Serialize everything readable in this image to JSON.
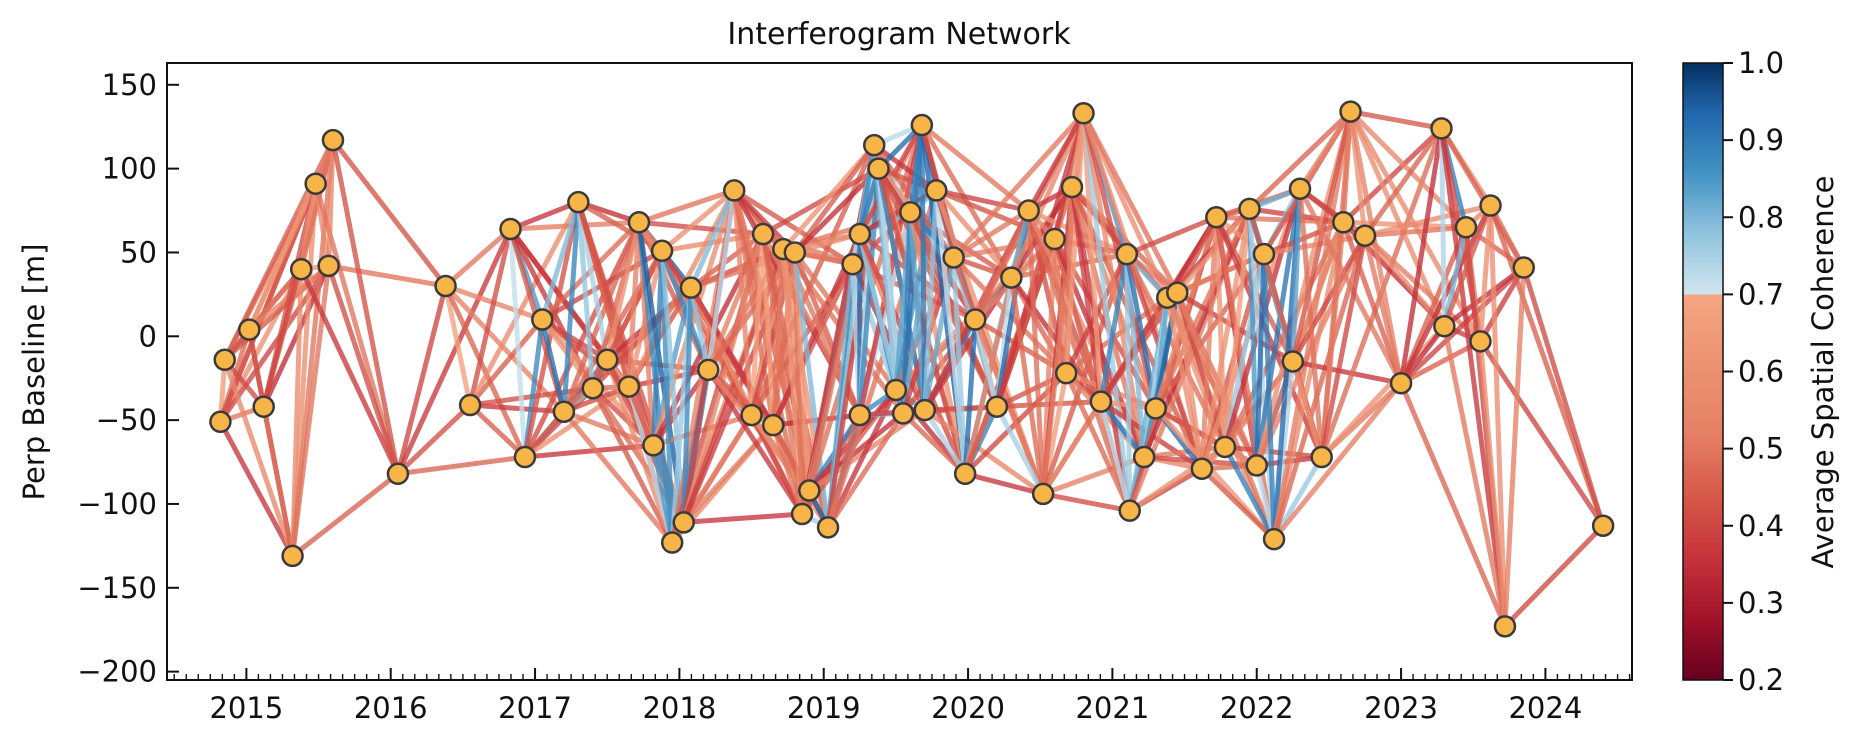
{
  "chart_data": {
    "type": "scatter",
    "title": "Interferogram Network",
    "xlabel": "",
    "ylabel": "Perp Baseline [m]",
    "xlim": [
      2014.45,
      2024.6
    ],
    "ylim": [
      -205,
      163
    ],
    "x_ticks": [
      "2015",
      "2016",
      "2017",
      "2018",
      "2019",
      "2020",
      "2021",
      "2022",
      "2023",
      "2024"
    ],
    "y_ticks": [
      "150",
      "100",
      "50",
      "0",
      "−50",
      "−100",
      "−150",
      "−200"
    ],
    "y_tick_values": [
      150,
      100,
      50,
      0,
      -50,
      -100,
      -150,
      -200
    ],
    "colorbar": {
      "label": "Average Spatial Coherence",
      "ticks": [
        "1.0",
        "0.9",
        "0.8",
        "0.7",
        "0.6",
        "0.5",
        "0.4",
        "0.3",
        "0.2"
      ],
      "tick_values": [
        1.0,
        0.9,
        0.8,
        0.7,
        0.6,
        0.5,
        0.4,
        0.3,
        0.2
      ],
      "range": [
        0.2,
        1.0
      ],
      "colormap": "RdBu with discontinuity at 0.7",
      "low_color": "#67001f",
      "mid_low_color": "#f4a582",
      "mid_high_color": "#d1e5f0",
      "high_color": "#053061"
    },
    "point_style": {
      "fill": "#f7b547",
      "edge": "#3a3a3a"
    },
    "acquisitions": [
      {
        "date": 2014.82,
        "bperp": -51
      },
      {
        "date": 2014.85,
        "bperp": -14
      },
      {
        "date": 2015.02,
        "bperp": 4
      },
      {
        "date": 2015.12,
        "bperp": -42
      },
      {
        "date": 2015.32,
        "bperp": -131
      },
      {
        "date": 2015.38,
        "bperp": 40
      },
      {
        "date": 2015.48,
        "bperp": 91
      },
      {
        "date": 2015.6,
        "bperp": 117
      },
      {
        "date": 2015.57,
        "bperp": 42
      },
      {
        "date": 2016.05,
        "bperp": -82
      },
      {
        "date": 2016.38,
        "bperp": 30
      },
      {
        "date": 2016.55,
        "bperp": -41
      },
      {
        "date": 2016.83,
        "bperp": 64
      },
      {
        "date": 2016.93,
        "bperp": -72
      },
      {
        "date": 2017.05,
        "bperp": 10
      },
      {
        "date": 2017.2,
        "bperp": -45
      },
      {
        "date": 2017.3,
        "bperp": 80
      },
      {
        "date": 2017.4,
        "bperp": -31
      },
      {
        "date": 2017.5,
        "bperp": -14
      },
      {
        "date": 2017.65,
        "bperp": -30
      },
      {
        "date": 2017.72,
        "bperp": 68
      },
      {
        "date": 2017.82,
        "bperp": -65
      },
      {
        "date": 2017.88,
        "bperp": 51
      },
      {
        "date": 2017.95,
        "bperp": -123
      },
      {
        "date": 2018.03,
        "bperp": -111
      },
      {
        "date": 2018.08,
        "bperp": 29
      },
      {
        "date": 2018.2,
        "bperp": -20
      },
      {
        "date": 2018.38,
        "bperp": 87
      },
      {
        "date": 2018.5,
        "bperp": -47
      },
      {
        "date": 2018.58,
        "bperp": 61
      },
      {
        "date": 2018.65,
        "bperp": -53
      },
      {
        "date": 2018.72,
        "bperp": 52
      },
      {
        "date": 2018.8,
        "bperp": 50
      },
      {
        "date": 2018.85,
        "bperp": -106
      },
      {
        "date": 2018.9,
        "bperp": -92
      },
      {
        "date": 2019.03,
        "bperp": -114
      },
      {
        "date": 2019.2,
        "bperp": 43
      },
      {
        "date": 2019.25,
        "bperp": -47
      },
      {
        "date": 2019.25,
        "bperp": 61
      },
      {
        "date": 2019.35,
        "bperp": 114
      },
      {
        "date": 2019.38,
        "bperp": 100
      },
      {
        "date": 2019.5,
        "bperp": -32
      },
      {
        "date": 2019.55,
        "bperp": -46
      },
      {
        "date": 2019.6,
        "bperp": 74
      },
      {
        "date": 2019.68,
        "bperp": 126
      },
      {
        "date": 2019.7,
        "bperp": -44
      },
      {
        "date": 2019.78,
        "bperp": 87
      },
      {
        "date": 2019.9,
        "bperp": 47
      },
      {
        "date": 2019.98,
        "bperp": -82
      },
      {
        "date": 2020.05,
        "bperp": 10
      },
      {
        "date": 2020.2,
        "bperp": -42
      },
      {
        "date": 2020.3,
        "bperp": 35
      },
      {
        "date": 2020.42,
        "bperp": 75
      },
      {
        "date": 2020.52,
        "bperp": -94
      },
      {
        "date": 2020.6,
        "bperp": 58
      },
      {
        "date": 2020.68,
        "bperp": -22
      },
      {
        "date": 2020.72,
        "bperp": 89
      },
      {
        "date": 2020.8,
        "bperp": 133
      },
      {
        "date": 2020.92,
        "bperp": -39
      },
      {
        "date": 2021.1,
        "bperp": 49
      },
      {
        "date": 2021.12,
        "bperp": -104
      },
      {
        "date": 2021.22,
        "bperp": -72
      },
      {
        "date": 2021.3,
        "bperp": -43
      },
      {
        "date": 2021.38,
        "bperp": 23
      },
      {
        "date": 2021.45,
        "bperp": 26
      },
      {
        "date": 2021.62,
        "bperp": -79
      },
      {
        "date": 2021.72,
        "bperp": 71
      },
      {
        "date": 2021.78,
        "bperp": -66
      },
      {
        "date": 2021.95,
        "bperp": 76
      },
      {
        "date": 2022.0,
        "bperp": -77
      },
      {
        "date": 2022.05,
        "bperp": 49
      },
      {
        "date": 2022.12,
        "bperp": -121
      },
      {
        "date": 2022.25,
        "bperp": -15
      },
      {
        "date": 2022.3,
        "bperp": 88
      },
      {
        "date": 2022.45,
        "bperp": -72
      },
      {
        "date": 2022.6,
        "bperp": 68
      },
      {
        "date": 2022.65,
        "bperp": 134
      },
      {
        "date": 2022.75,
        "bperp": 60
      },
      {
        "date": 2023.0,
        "bperp": -28
      },
      {
        "date": 2023.28,
        "bperp": 124
      },
      {
        "date": 2023.3,
        "bperp": 6
      },
      {
        "date": 2023.45,
        "bperp": 65
      },
      {
        "date": 2023.55,
        "bperp": -3
      },
      {
        "date": 2023.62,
        "bperp": 78
      },
      {
        "date": 2023.72,
        "bperp": -173
      },
      {
        "date": 2023.85,
        "bperp": 41
      },
      {
        "date": 2024.4,
        "bperp": -113
      }
    ]
  }
}
